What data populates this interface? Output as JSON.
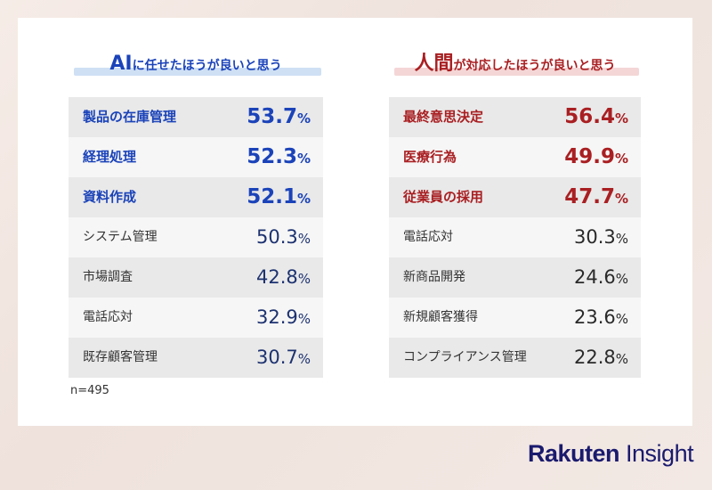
{
  "chart_data": [
    {
      "type": "table",
      "title_prefix": "AI",
      "title_rest": "に任せたほうが良いと思う",
      "highlight_color": "#1b43b9",
      "rows": [
        {
          "label": "製品の在庫管理",
          "value": "53.7",
          "unit": "%",
          "highlight": true
        },
        {
          "label": "経理処理",
          "value": "52.3",
          "unit": "%",
          "highlight": true
        },
        {
          "label": "資料作成",
          "value": "52.1",
          "unit": "%",
          "highlight": true
        },
        {
          "label": "システム管理",
          "value": "50.3",
          "unit": "%",
          "highlight": false
        },
        {
          "label": "市場調査",
          "value": "42.8",
          "unit": "%",
          "highlight": false
        },
        {
          "label": "電話応対",
          "value": "32.9",
          "unit": "%",
          "highlight": false
        },
        {
          "label": "既存顧客管理",
          "value": "30.7",
          "unit": "%",
          "highlight": false
        }
      ]
    },
    {
      "type": "table",
      "title_prefix": "人間",
      "title_rest": "が対応したほうが良いと思う",
      "highlight_color": "#a91f22",
      "rows": [
        {
          "label": "最終意思決定",
          "value": "56.4",
          "unit": "%",
          "highlight": true
        },
        {
          "label": "医療行為",
          "value": "49.9",
          "unit": "%",
          "highlight": true
        },
        {
          "label": "従業員の採用",
          "value": "47.7",
          "unit": "%",
          "highlight": true
        },
        {
          "label": "電話応対",
          "value": "30.3",
          "unit": "%",
          "highlight": false
        },
        {
          "label": "新商品開発",
          "value": "24.6",
          "unit": "%",
          "highlight": false
        },
        {
          "label": "新規顧客獲得",
          "value": "23.6",
          "unit": "%",
          "highlight": false
        },
        {
          "label": "コンプライアンス管理",
          "value": "22.8",
          "unit": "%",
          "highlight": false
        }
      ]
    }
  ],
  "sample_note": "n=495",
  "brand": {
    "part1": "Rakuten",
    "part2": " Insight"
  }
}
